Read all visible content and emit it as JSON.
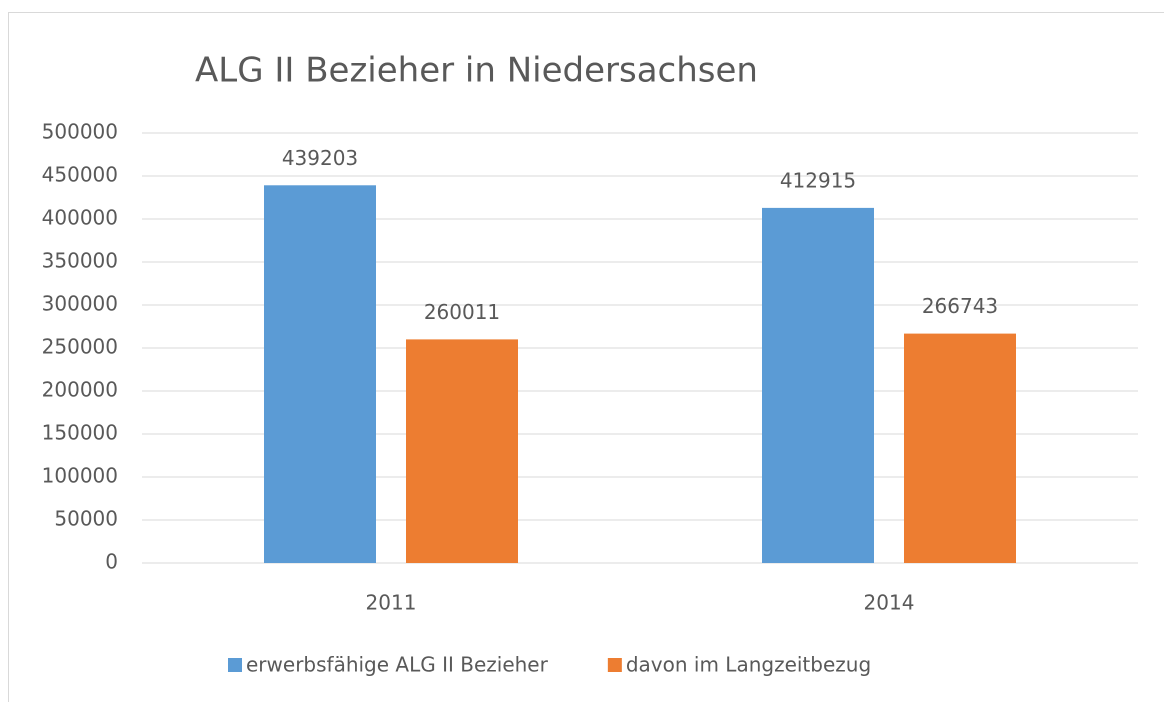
{
  "chart_data": {
    "type": "bar",
    "title": "ALG II Bezieher in Niedersachsen",
    "categories": [
      "2011",
      "2014"
    ],
    "series": [
      {
        "name": "erwerbsfähige ALG II Bezieher",
        "color": "#5b9bd5",
        "values": [
          439203,
          412915
        ]
      },
      {
        "name": "davon im Langzeitbezug",
        "color": "#ed7d31",
        "values": [
          260011,
          266743
        ]
      }
    ],
    "ylim": [
      0,
      500000
    ],
    "yticks": [
      0,
      50000,
      100000,
      150000,
      200000,
      250000,
      300000,
      350000,
      400000,
      450000,
      500000
    ],
    "grid": true,
    "legend": "bottom"
  }
}
